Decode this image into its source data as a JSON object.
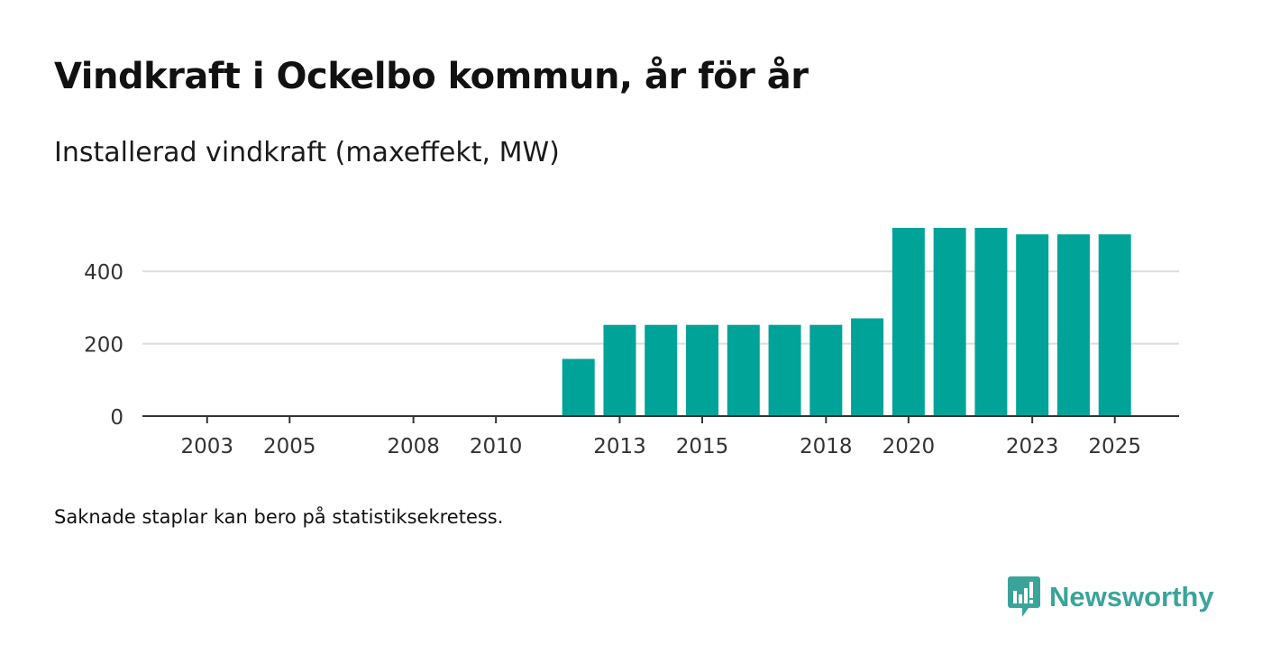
{
  "title": "Vindkraft i Ockelbo kommun, år för år",
  "subtitle": "Installerad vindkraft (maxeffekt, MW)",
  "note": "Saknade staplar kan bero på statistiksekretess.",
  "brand": {
    "name": "Newsworthy",
    "icon": "newsworthy-logo-icon",
    "color": "#3aa49b"
  },
  "colors": {
    "bar": "#00a398",
    "grid": "#dddddd",
    "axis": "#333333"
  },
  "chart_data": {
    "type": "bar",
    "title": "Vindkraft i Ockelbo kommun, år för år",
    "subtitle": "Installerad vindkraft (maxeffekt, MW)",
    "xlabel": "",
    "ylabel": "",
    "categories": [
      2002,
      2003,
      2004,
      2005,
      2006,
      2007,
      2008,
      2009,
      2010,
      2011,
      2012,
      2013,
      2014,
      2015,
      2016,
      2017,
      2018,
      2019,
      2020,
      2021,
      2022,
      2023,
      2024,
      2025
    ],
    "values": [
      null,
      null,
      null,
      null,
      null,
      null,
      null,
      null,
      null,
      null,
      158,
      252,
      252,
      252,
      252,
      252,
      252,
      270,
      520,
      520,
      520,
      502,
      502,
      502
    ],
    "ylim": [
      0,
      520
    ],
    "yticks": [
      0,
      200,
      400
    ],
    "xtick_labels": [
      2003,
      2005,
      2008,
      2010,
      2013,
      2015,
      2018,
      2020,
      2023,
      2025
    ],
    "grid": true,
    "legend": "none"
  }
}
